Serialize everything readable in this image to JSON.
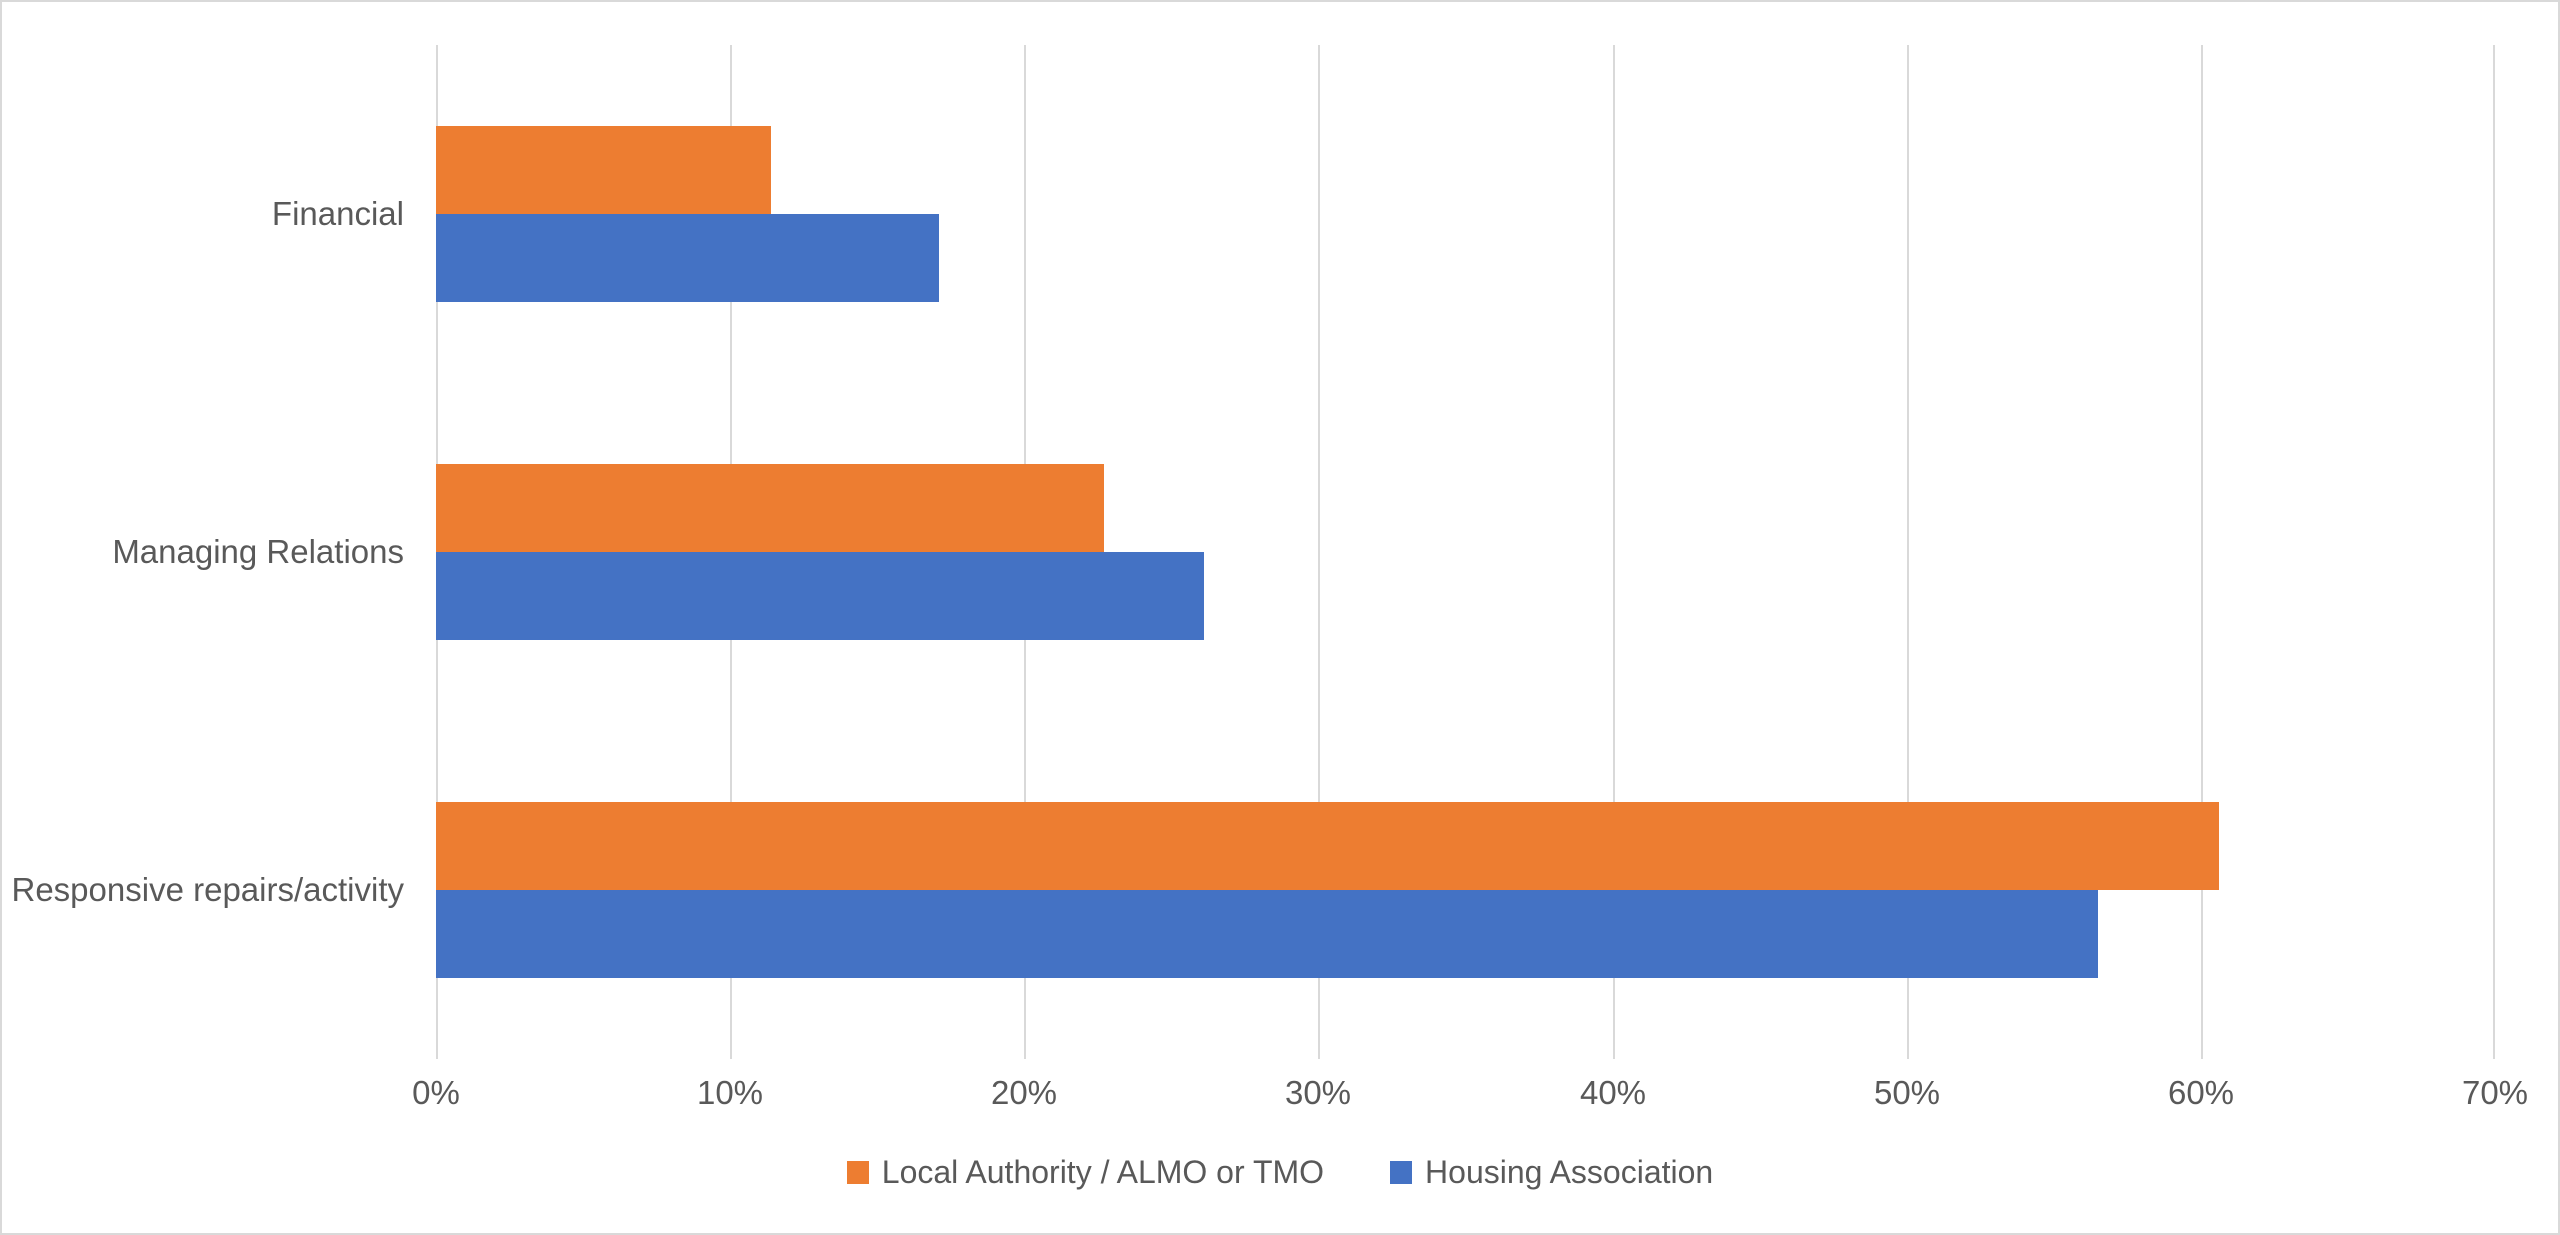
{
  "chart_data": {
    "type": "bar",
    "orientation": "horizontal",
    "title": "",
    "xlabel": "",
    "ylabel": "",
    "categories": [
      "Financial",
      "Managing Relations",
      "Responsive repairs/activity"
    ],
    "series": [
      {
        "name": "Local Authority / ALMO or TMO",
        "color": "#ED7D31",
        "values": [
          11.4,
          22.7,
          60.6
        ]
      },
      {
        "name": "Housing Association",
        "color": "#4472C4",
        "values": [
          17.1,
          26.1,
          56.5
        ]
      }
    ],
    "xlim": [
      0,
      70
    ],
    "x_ticks": [
      "0%",
      "10%",
      "20%",
      "30%",
      "40%",
      "50%",
      "60%",
      "70%"
    ],
    "x_tick_values": [
      0,
      10,
      20,
      30,
      40,
      50,
      60,
      70
    ],
    "grid": true,
    "legend_position": "bottom-center"
  },
  "colors": {
    "background": "#FFFFFF",
    "frame_border": "#D9D9D9",
    "gridline": "#D9D9D9",
    "text": "#595959",
    "series_local_authority": "#ED7D31",
    "series_housing_association": "#4472C4"
  }
}
